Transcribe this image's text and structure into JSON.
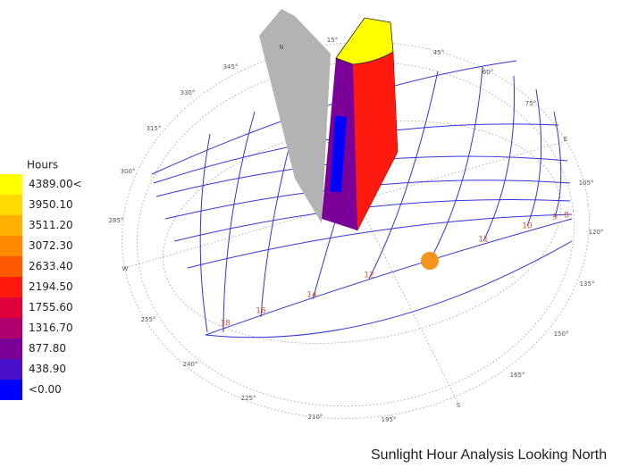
{
  "legend": {
    "title": "Hours",
    "items": [
      {
        "label": "4389.00<",
        "color": "#ffff00"
      },
      {
        "label": "3950.10",
        "color": "#ffd900"
      },
      {
        "label": "3511.20",
        "color": "#ffb000"
      },
      {
        "label": "3072.30",
        "color": "#ff8a00"
      },
      {
        "label": "2633.40",
        "color": "#ff5a00"
      },
      {
        "label": "2194.50",
        "color": "#ff1a10"
      },
      {
        "label": "1755.60",
        "color": "#e0003c"
      },
      {
        "label": "1316.70",
        "color": "#b0006e"
      },
      {
        "label": "877.80",
        "color": "#7a0098"
      },
      {
        "label": "438.90",
        "color": "#4a10c8"
      },
      {
        "label": "<0.00",
        "color": "#0000ff"
      }
    ]
  },
  "compass": [
    "N",
    "15°",
    "345°",
    "330°",
    "315°",
    "300°",
    "285°",
    "W",
    "255°",
    "240°",
    "225°",
    "210°",
    "195°",
    "S",
    "165°",
    "150°",
    "135°",
    "120°",
    "105°",
    "E",
    "75°",
    "60°",
    "45°"
  ],
  "hour_labels": [
    "8",
    "9",
    "10",
    "11",
    "12",
    "14",
    "16",
    "18"
  ],
  "caption": "Sunlight Hour Analysis Looking North"
}
